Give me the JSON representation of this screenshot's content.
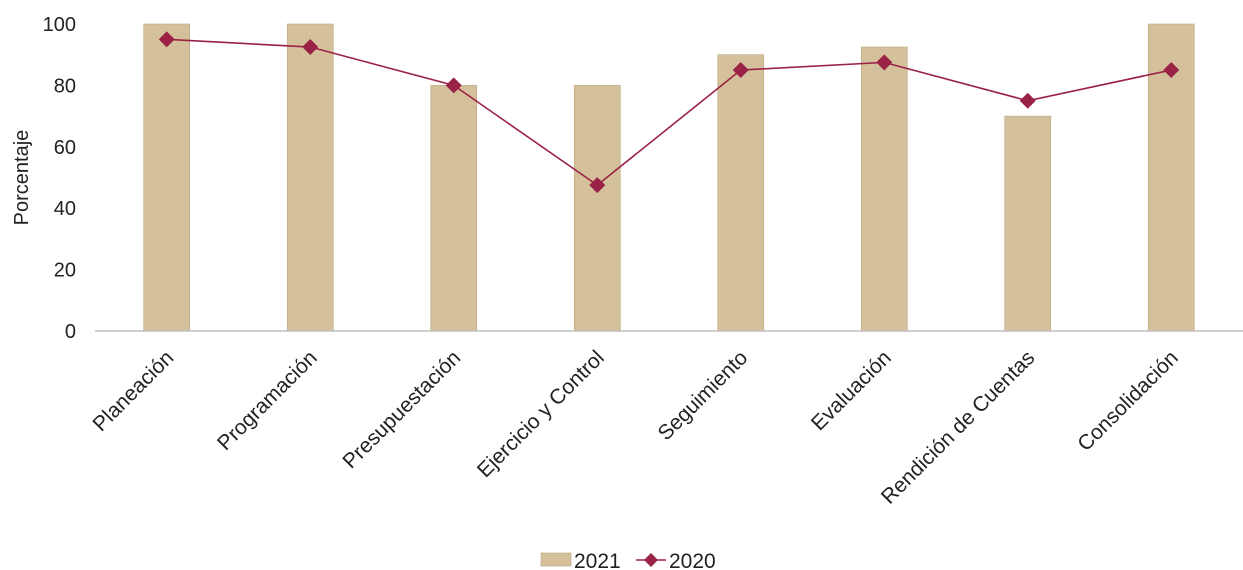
{
  "chart_data": {
    "type": "bar",
    "title": "",
    "xlabel": "",
    "ylabel": "Porcentaje",
    "ylim": [
      0,
      100
    ],
    "yticks": [
      0,
      20,
      40,
      60,
      80,
      100
    ],
    "grid": false,
    "legend_position": "bottom",
    "categories": [
      "Planeación",
      "Programación",
      "Presupuestación",
      "Ejercicio y Control",
      "Seguimiento",
      "Evaluación",
      "Rendición de Cuentas",
      "Consolidación"
    ],
    "series": [
      {
        "name": "2021",
        "type": "bar",
        "color": "#d4c19c",
        "values": [
          100,
          100,
          80,
          80,
          90,
          92.5,
          70,
          100
        ]
      },
      {
        "name": "2020",
        "type": "line",
        "marker": "diamond",
        "color": "#9b2247",
        "values": [
          95,
          92.5,
          80,
          47.5,
          85,
          87.5,
          75,
          85
        ]
      }
    ]
  }
}
